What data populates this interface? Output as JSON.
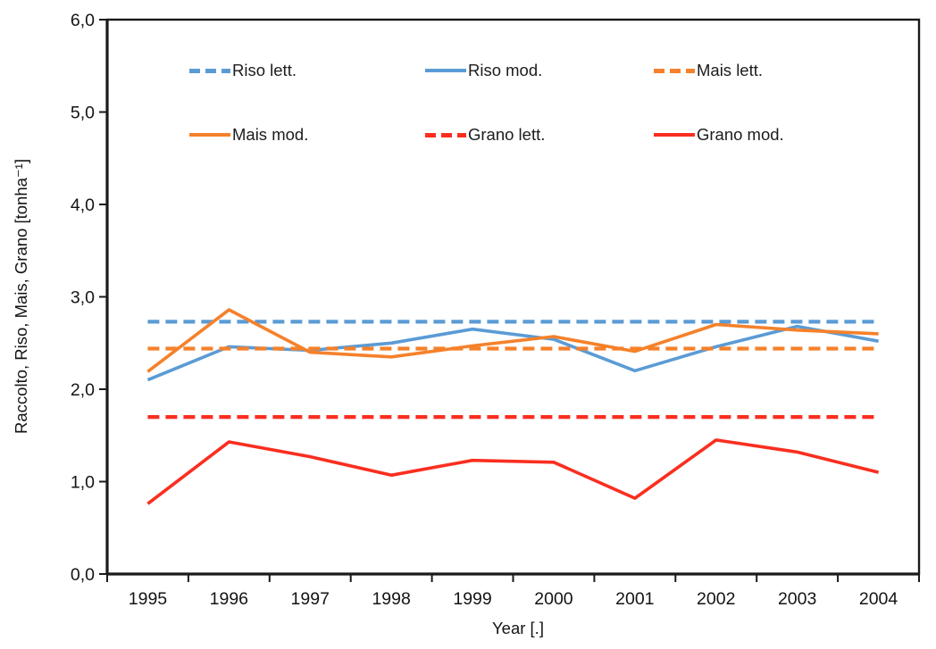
{
  "chart_data": {
    "type": "line",
    "title": "",
    "xlabel": "Year [.]",
    "ylabel": "Raccolto, Riso, Mais, Grano [tonha⁻¹]",
    "x": [
      1995,
      1996,
      1997,
      1998,
      1999,
      2000,
      2001,
      2002,
      2003,
      2004
    ],
    "x_tick_labels": [
      "1995",
      "1996",
      "1997",
      "1998",
      "1999",
      "2000",
      "2001",
      "2002",
      "2003",
      "2004"
    ],
    "y_ticks": [
      0,
      1,
      2,
      3,
      4,
      5,
      6
    ],
    "y_tick_labels": [
      "0,0",
      "1,0",
      "2,0",
      "3,0",
      "4,0",
      "5,0",
      "6,0"
    ],
    "ylim": [
      0,
      6
    ],
    "grid": false,
    "legend_position": "inside-top-two-rows",
    "axis_color": "#1a1a1a",
    "series": [
      {
        "name": "Riso lett.",
        "style": "dashed",
        "color": "#5B9BD5",
        "values": [
          2.73,
          2.73,
          2.73,
          2.73,
          2.73,
          2.73,
          2.73,
          2.73,
          2.73,
          2.73
        ]
      },
      {
        "name": "Riso mod.",
        "style": "solid",
        "color": "#5B9BD5",
        "values": [
          2.1,
          2.46,
          2.42,
          2.5,
          2.65,
          2.54,
          2.2,
          2.46,
          2.68,
          2.52
        ]
      },
      {
        "name": "Mais lett.",
        "style": "dashed",
        "color": "#F5812B",
        "values": [
          2.44,
          2.44,
          2.44,
          2.44,
          2.44,
          2.44,
          2.44,
          2.44,
          2.44,
          2.44
        ]
      },
      {
        "name": "Mais mod.",
        "style": "solid",
        "color": "#F5812B",
        "values": [
          2.19,
          2.86,
          2.4,
          2.35,
          2.47,
          2.57,
          2.41,
          2.7,
          2.64,
          2.6
        ]
      },
      {
        "name": "Grano lett.",
        "style": "dashed",
        "color": "#FA2E1F",
        "values": [
          1.7,
          1.7,
          1.7,
          1.7,
          1.7,
          1.7,
          1.7,
          1.7,
          1.7,
          1.7
        ]
      },
      {
        "name": "Grano mod.",
        "style": "solid",
        "color": "#FA2E1F",
        "values": [
          0.76,
          1.43,
          1.27,
          1.07,
          1.23,
          1.21,
          0.82,
          1.45,
          1.32,
          1.1
        ]
      }
    ]
  },
  "axes": {
    "x_title": "Year [.]",
    "y_title": "Raccolto, Riso, Mais, Grano [tonha⁻¹]"
  },
  "legend": {
    "items": [
      {
        "label": "Riso lett."
      },
      {
        "label": "Riso mod."
      },
      {
        "label": "Mais lett."
      },
      {
        "label": "Mais mod."
      },
      {
        "label": "Grano lett."
      },
      {
        "label": "Grano mod."
      }
    ]
  }
}
